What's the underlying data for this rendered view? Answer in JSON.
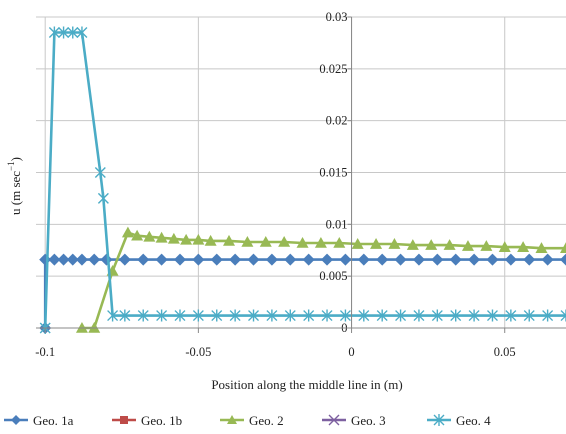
{
  "chart_data": {
    "type": "line",
    "xlabel": "Position along the middle line in (m)",
    "ylabel": "u (m sec",
    "ylabel_sup": "−1",
    "ylabel_close": ")",
    "xlim": [
      -0.103,
      0.07
    ],
    "ylim": [
      0,
      0.03
    ],
    "xticks": [
      {
        "v": -0.1,
        "label": "-0.1"
      },
      {
        "v": -0.05,
        "label": "-0.05"
      },
      {
        "v": 0,
        "label": "0"
      },
      {
        "v": 0.05,
        "label": "0.05"
      }
    ],
    "yticks": [
      {
        "v": 0,
        "label": "0"
      },
      {
        "v": 0.005,
        "label": "0.005"
      },
      {
        "v": 0.01,
        "label": "0.01"
      },
      {
        "v": 0.015,
        "label": "0.015"
      },
      {
        "v": 0.02,
        "label": "0.02"
      },
      {
        "v": 0.025,
        "label": "0.025"
      },
      {
        "v": 0.03,
        "label": "0.03"
      }
    ],
    "grid": true,
    "legend_position": "bottom",
    "series": [
      {
        "name": "Geo. 1a",
        "color": "#4a7ebb",
        "marker": "diamond",
        "points": [
          [
            -0.1,
            0
          ],
          [
            -0.1,
            0.0066
          ],
          [
            -0.097,
            0.0066
          ],
          [
            -0.094,
            0.0066
          ],
          [
            -0.091,
            0.0066
          ],
          [
            -0.088,
            0.0066
          ],
          [
            -0.084,
            0.0066
          ],
          [
            -0.08,
            0.0066
          ],
          [
            -0.074,
            0.0066
          ],
          [
            -0.068,
            0.0066
          ],
          [
            -0.062,
            0.0066
          ],
          [
            -0.056,
            0.0066
          ],
          [
            -0.05,
            0.0066
          ],
          [
            -0.044,
            0.0066
          ],
          [
            -0.038,
            0.0066
          ],
          [
            -0.032,
            0.0066
          ],
          [
            -0.026,
            0.0066
          ],
          [
            -0.02,
            0.0066
          ],
          [
            -0.014,
            0.0066
          ],
          [
            -0.008,
            0.0066
          ],
          [
            -0.002,
            0.0066
          ],
          [
            0.004,
            0.0066
          ],
          [
            0.01,
            0.0066
          ],
          [
            0.016,
            0.0066
          ],
          [
            0.022,
            0.0066
          ],
          [
            0.028,
            0.0066
          ],
          [
            0.034,
            0.0066
          ],
          [
            0.04,
            0.0066
          ],
          [
            0.046,
            0.0066
          ],
          [
            0.052,
            0.0066
          ],
          [
            0.058,
            0.0066
          ],
          [
            0.064,
            0.0066
          ],
          [
            0.07,
            0.0066
          ]
        ]
      },
      {
        "name": "Geo. 1b",
        "color": "#be4b48",
        "marker": "square",
        "points": []
      },
      {
        "name": "Geo. 2",
        "color": "#98b954",
        "marker": "triangle",
        "points": [
          [
            -0.088,
            0
          ],
          [
            -0.084,
            0
          ],
          [
            -0.078,
            0.0055
          ],
          [
            -0.073,
            0.0092
          ],
          [
            -0.07,
            0.0089
          ],
          [
            -0.066,
            0.0088
          ],
          [
            -0.062,
            0.0087
          ],
          [
            -0.058,
            0.0086
          ],
          [
            -0.054,
            0.0085
          ],
          [
            -0.05,
            0.0085
          ],
          [
            -0.046,
            0.0084
          ],
          [
            -0.04,
            0.0084
          ],
          [
            -0.034,
            0.0083
          ],
          [
            -0.028,
            0.0083
          ],
          [
            -0.022,
            0.0083
          ],
          [
            -0.016,
            0.0082
          ],
          [
            -0.01,
            0.0082
          ],
          [
            -0.004,
            0.0082
          ],
          [
            0.002,
            0.0081
          ],
          [
            0.008,
            0.0081
          ],
          [
            0.014,
            0.0081
          ],
          [
            0.02,
            0.008
          ],
          [
            0.026,
            0.008
          ],
          [
            0.032,
            0.008
          ],
          [
            0.038,
            0.0079
          ],
          [
            0.044,
            0.0079
          ],
          [
            0.05,
            0.0078
          ],
          [
            0.056,
            0.0078
          ],
          [
            0.062,
            0.0077
          ],
          [
            0.07,
            0.0077
          ]
        ]
      },
      {
        "name": "Geo. 3",
        "color": "#7d60a0",
        "marker": "x",
        "points": []
      },
      {
        "name": "Geo. 4",
        "color": "#4bacc6",
        "marker": "star",
        "points": [
          [
            -0.1,
            0
          ],
          [
            -0.097,
            0.0285
          ],
          [
            -0.094,
            0.0285
          ],
          [
            -0.091,
            0.0285
          ],
          [
            -0.088,
            0.0285
          ],
          [
            -0.082,
            0.015
          ],
          [
            -0.081,
            0.0125
          ],
          [
            -0.078,
            0.0012
          ],
          [
            -0.074,
            0.0012
          ],
          [
            -0.068,
            0.0012
          ],
          [
            -0.062,
            0.0012
          ],
          [
            -0.056,
            0.0012
          ],
          [
            -0.05,
            0.0012
          ],
          [
            -0.044,
            0.0012
          ],
          [
            -0.038,
            0.0012
          ],
          [
            -0.032,
            0.0012
          ],
          [
            -0.026,
            0.0012
          ],
          [
            -0.02,
            0.0012
          ],
          [
            -0.014,
            0.0012
          ],
          [
            -0.008,
            0.0012
          ],
          [
            -0.002,
            0.0012
          ],
          [
            0.004,
            0.0012
          ],
          [
            0.01,
            0.0012
          ],
          [
            0.016,
            0.0012
          ],
          [
            0.022,
            0.0012
          ],
          [
            0.028,
            0.0012
          ],
          [
            0.034,
            0.0012
          ],
          [
            0.04,
            0.0012
          ],
          [
            0.046,
            0.0012
          ],
          [
            0.052,
            0.0012
          ],
          [
            0.058,
            0.0012
          ],
          [
            0.064,
            0.0012
          ],
          [
            0.07,
            0.0012
          ]
        ]
      }
    ]
  }
}
